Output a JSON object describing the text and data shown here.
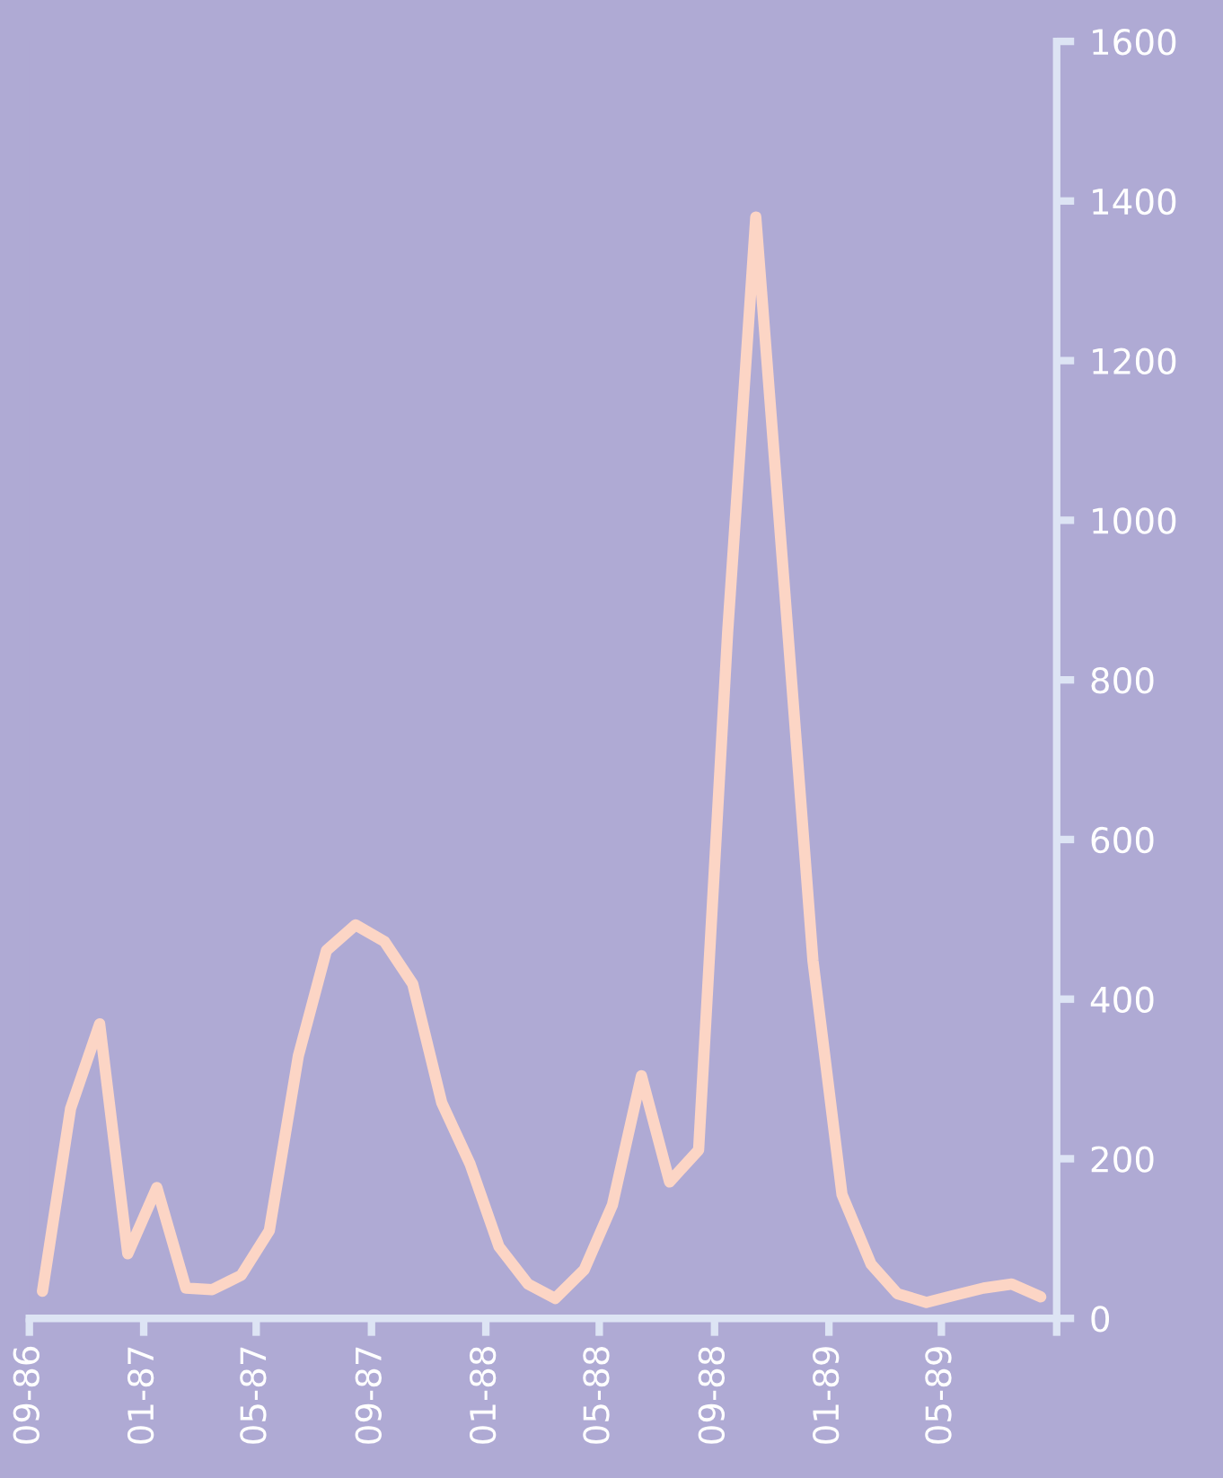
{
  "chart_data": {
    "type": "line",
    "x": [
      "1986-09-15",
      "1986-10-15",
      "1986-11-15",
      "1986-12-15",
      "1987-01-15",
      "1987-02-15",
      "1987-03-15",
      "1987-04-15",
      "1987-05-15",
      "1987-06-15",
      "1987-07-15",
      "1987-08-15",
      "1987-09-15",
      "1987-10-15",
      "1987-11-15",
      "1987-12-15",
      "1988-01-15",
      "1988-02-15",
      "1988-03-15",
      "1988-04-15",
      "1988-05-15",
      "1988-06-15",
      "1988-07-15",
      "1988-08-15",
      "1988-09-15",
      "1988-10-15",
      "1988-11-15",
      "1988-12-15",
      "1989-01-15",
      "1989-02-15",
      "1989-03-15",
      "1989-04-15",
      "1989-05-15",
      "1989-06-15",
      "1989-07-15",
      "1989-08-15"
    ],
    "series": [
      {
        "color": "#fcd5c5",
        "values": [
          34,
          263,
          369,
          81,
          164,
          38,
          36,
          54,
          110,
          329,
          461,
          493,
          472,
          419,
          270,
          194,
          90,
          43,
          25,
          61,
          142,
          304,
          171,
          211,
          860,
          1380,
          909,
          448,
          155,
          68,
          31,
          20,
          29,
          38,
          43,
          27
        ]
      }
    ],
    "xlim": [
      "1986-09-01",
      "1989-09-01"
    ],
    "xticks": [
      {
        "value": "1986-09-01",
        "label": "09-86"
      },
      {
        "value": "1987-01-01",
        "label": "01-87"
      },
      {
        "value": "1987-05-01",
        "label": "05-87"
      },
      {
        "value": "1987-09-01",
        "label": "09-87"
      },
      {
        "value": "1988-01-01",
        "label": "01-88"
      },
      {
        "value": "1988-05-01",
        "label": "05-88"
      },
      {
        "value": "1988-09-01",
        "label": "09-88"
      },
      {
        "value": "1989-01-01",
        "label": "01-89"
      },
      {
        "value": "1989-05-01",
        "label": "05-89"
      },
      {
        "value": "1989-09-01",
        "label": null
      }
    ],
    "ylim": [
      0,
      1600
    ],
    "yticks": [
      0,
      200,
      400,
      600,
      800,
      1000,
      1200,
      1400,
      1600
    ],
    "grid": false,
    "legend": false,
    "marker": "none",
    "line_style": "solid"
  }
}
